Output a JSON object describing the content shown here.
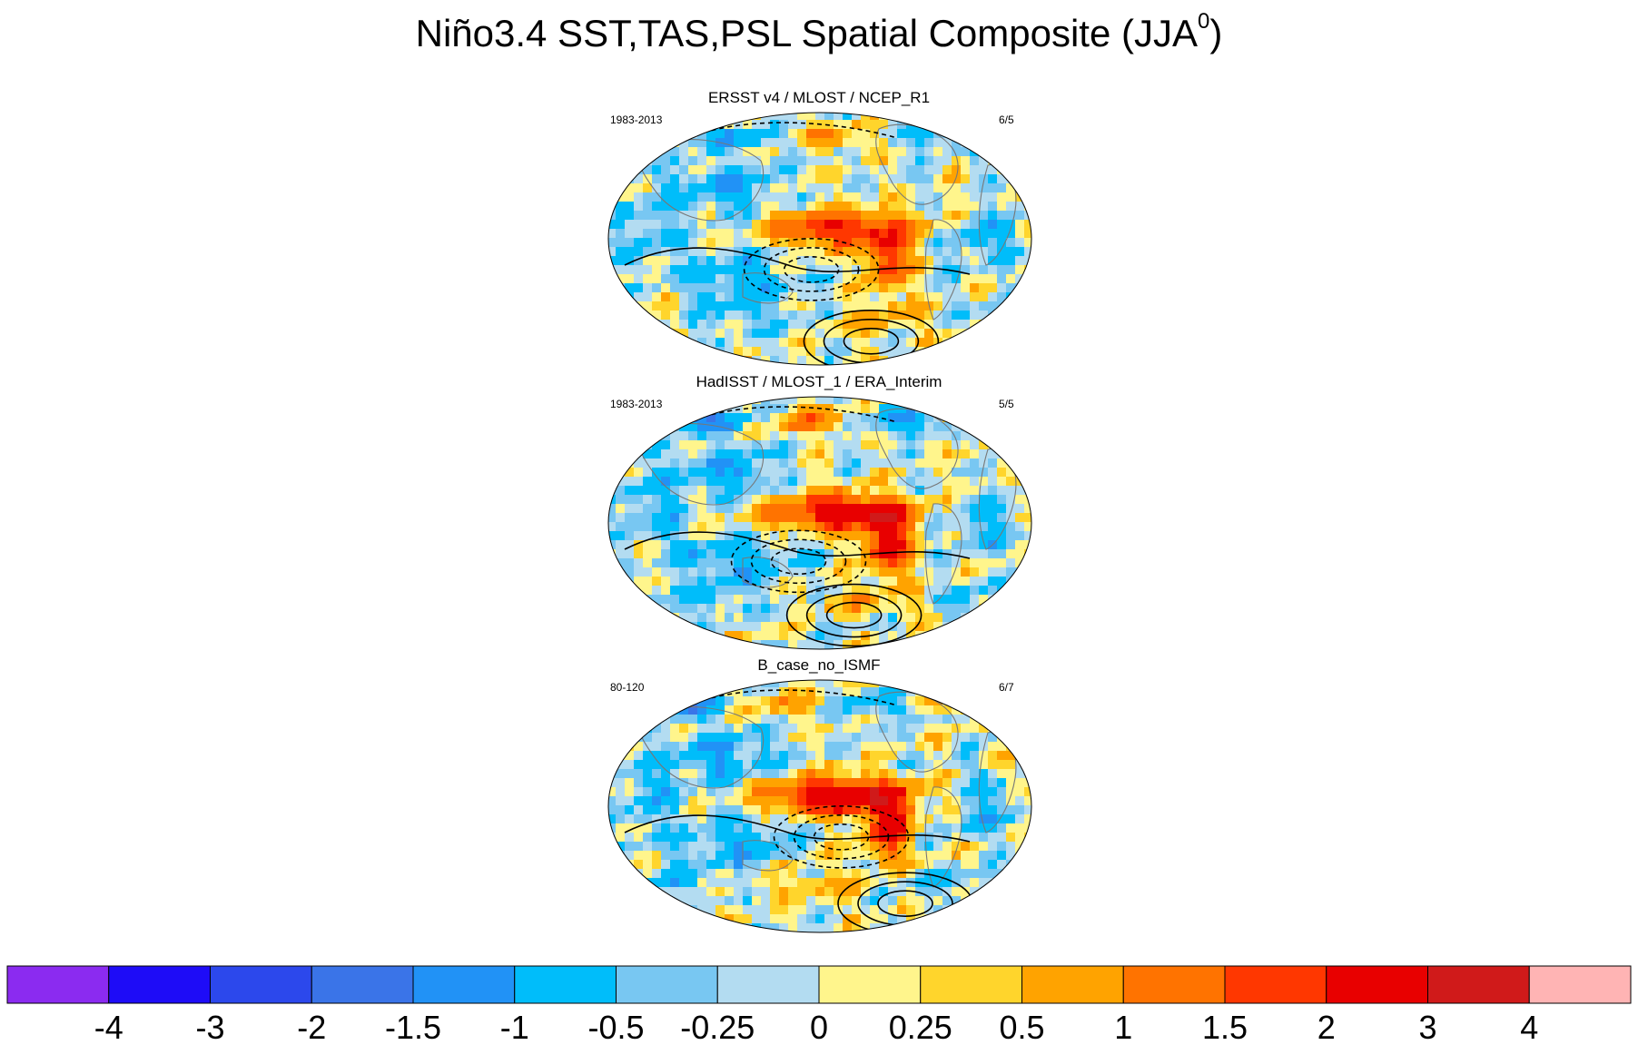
{
  "title": {
    "main": "Niño3.4 SST,TAS,PSL Spatial Composite (JJA",
    "superscript": "0",
    "closing": ")"
  },
  "panels": [
    {
      "title": "ERSST v4 / MLOST / NCEP_R1",
      "left_label": "1983-2013",
      "right_label": "6/5"
    },
    {
      "title": "HadISST / MLOST_1 / ERA_Interim",
      "left_label": "1983-2013",
      "right_label": "5/5"
    },
    {
      "title": "B_case_no_ISMF",
      "left_label": "80-120",
      "right_label": "6/7"
    }
  ],
  "chart_data": {
    "type": "heatmap",
    "projection": "robinson",
    "fields": [
      "SST",
      "TAS",
      "PSL"
    ],
    "season": "JJA",
    "colorbar": {
      "orientation": "horizontal",
      "placement": "bottom",
      "levels": [
        "-4",
        "-3",
        "-2",
        "-1.5",
        "-1",
        "-0.5",
        "-0.25",
        "0",
        "0.25",
        "0.5",
        "1",
        "1.5",
        "2",
        "3",
        "4"
      ],
      "colors": [
        "#8b2bf0",
        "#1e0cf7",
        "#2c48ec",
        "#3a74e8",
        "#2192f6",
        "#00bdfa",
        "#78c7f2",
        "#b3dcf1",
        "#fff58c",
        "#ffd52c",
        "#ffa300",
        "#ff7300",
        "#ff3700",
        "#e80000",
        "#d01a1a",
        "#ffb4b4"
      ]
    }
  }
}
